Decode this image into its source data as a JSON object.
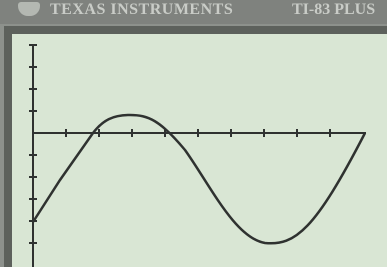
{
  "header": {
    "brand": "TEXAS INSTRUMENTS",
    "model": "TI-83 PLUS"
  }
}
